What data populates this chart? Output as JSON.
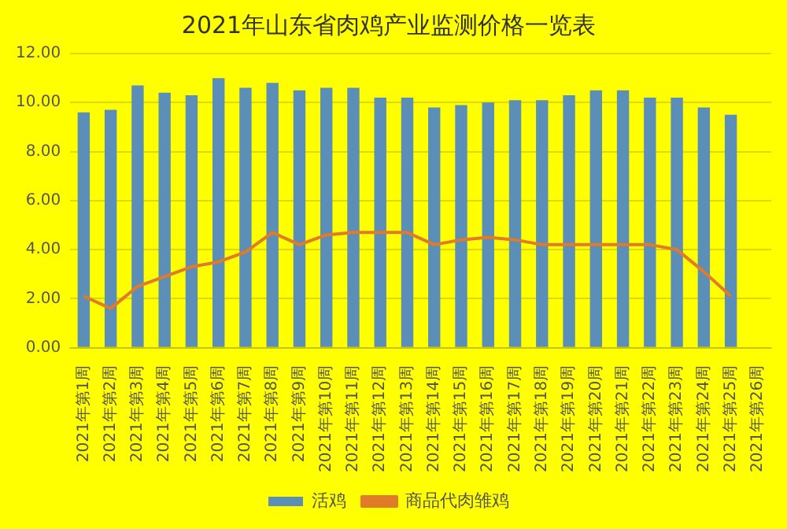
{
  "chart_data": {
    "type": "bar",
    "title": "2021年山东省肉鸡产业监测价格一览表",
    "categories": [
      "2021年第1周",
      "2021年第2周",
      "2021年第3周",
      "2021年第4周",
      "2021年第5周",
      "2021年第6周",
      "2021年第7周",
      "2021年第8周",
      "2021年第9周",
      "2021年第10周",
      "2021年第11周",
      "2021年第12周",
      "2021年第13周",
      "2021年第14周",
      "2021年第15周",
      "2021年第16周",
      "2021年第17周",
      "2021年第18周",
      "2021年第19周",
      "2021年第20周",
      "2021年第21周",
      "2021年第22周",
      "2021年第23周",
      "2021年第24周",
      "2021年第25周",
      "2021年第26周"
    ],
    "series": [
      {
        "name": "活鸡",
        "color": "#5b8fb8",
        "values": [
          9.6,
          9.7,
          10.7,
          10.4,
          10.3,
          11.0,
          10.6,
          10.8,
          10.5,
          10.6,
          10.6,
          10.2,
          10.2,
          9.8,
          9.9,
          10.0,
          10.1,
          10.1,
          10.3,
          10.5,
          10.5,
          10.2,
          10.2,
          9.8,
          9.5,
          null
        ]
      },
      {
        "name": "商品代肉雏鸡",
        "type": "line",
        "color": "#e07b2a",
        "values": [
          2.1,
          1.6,
          2.5,
          2.9,
          3.3,
          3.5,
          3.9,
          4.7,
          4.2,
          4.6,
          4.7,
          4.7,
          4.7,
          4.2,
          4.4,
          4.5,
          4.4,
          4.2,
          4.2,
          4.2,
          4.2,
          4.2,
          4.0,
          3.1,
          2.1,
          null
        ]
      }
    ],
    "ylim": [
      0,
      12
    ],
    "yticks": [
      {
        "value": 0,
        "label": "0.00"
      },
      {
        "value": 2,
        "label": "2.00"
      },
      {
        "value": 4,
        "label": "4.00"
      },
      {
        "value": 6,
        "label": "6.00"
      },
      {
        "value": 8,
        "label": "8.00"
      },
      {
        "value": 10,
        "label": "10.00"
      },
      {
        "value": 12,
        "label": "12.00"
      }
    ],
    "grid": "y",
    "legend": "bottom",
    "marker": "none",
    "line_style": "solid"
  }
}
